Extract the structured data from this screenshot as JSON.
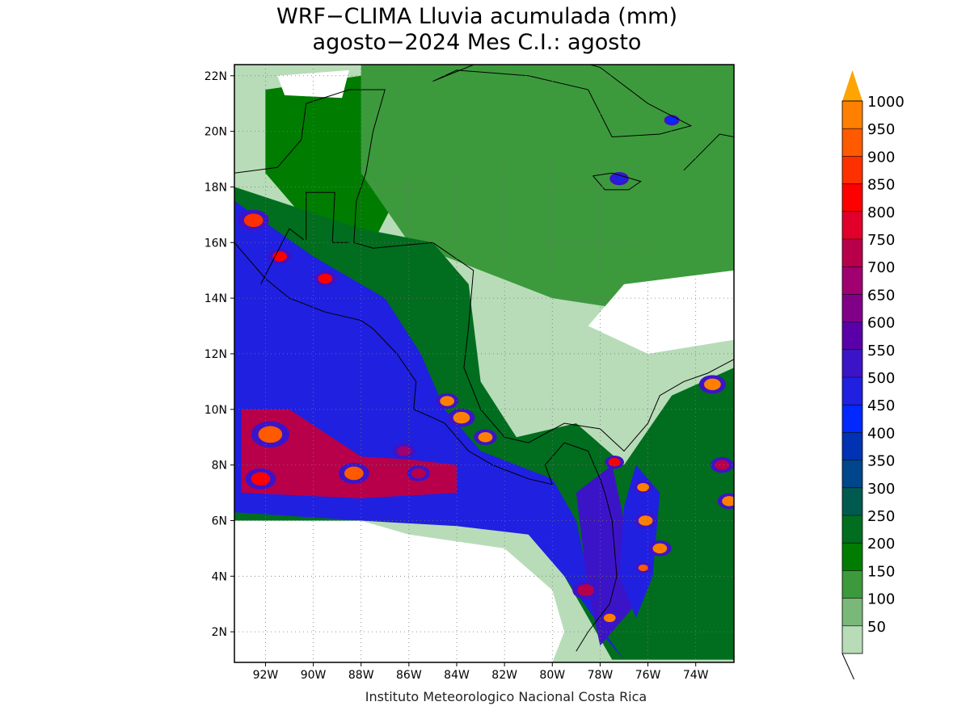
{
  "title_line1": "WRF−CLIMA Lluvia acumulada (mm)",
  "title_line2": "agosto−2024 Mes C.I.: agosto",
  "credit": "Instituto Meteorologico Nacional Costa Rica",
  "lat_labels": [
    "22N",
    "20N",
    "18N",
    "16N",
    "14N",
    "12N",
    "10N",
    "8N",
    "6N",
    "4N",
    "2N"
  ],
  "lat_values": [
    22,
    20,
    18,
    16,
    14,
    12,
    10,
    8,
    6,
    4,
    2
  ],
  "lon_labels": [
    "92W",
    "90W",
    "88W",
    "86W",
    "84W",
    "82W",
    "80W",
    "78W",
    "76W",
    "74W"
  ],
  "lon_values": [
    -92,
    -90,
    -88,
    -86,
    -84,
    -82,
    -80,
    -78,
    -76,
    -74
  ],
  "extent": {
    "lon_min": -93.3,
    "lon_max": -72.4,
    "lat_min": 0.9,
    "lat_max": 22.4
  },
  "colorbar": {
    "labels": [
      "1000",
      "950",
      "900",
      "850",
      "800",
      "750",
      "700",
      "650",
      "600",
      "550",
      "500",
      "450",
      "400",
      "350",
      "300",
      "250",
      "200",
      "150",
      "100",
      "50"
    ],
    "colors": [
      "#ffa400",
      "#ff8000",
      "#ff5a00",
      "#ff3000",
      "#ff0000",
      "#e0002a",
      "#b8004a",
      "#a00070",
      "#800088",
      "#5a00a8",
      "#3c14c8",
      "#2020e0",
      "#0028ff",
      "#0032b4",
      "#00468c",
      "#005a50",
      "#006e1e",
      "#007c00",
      "#3c9a3c",
      "#7ab87a",
      "#b8dcb8"
    ]
  },
  "rain_regions": [
    {
      "name": "yucatan",
      "level": "150",
      "pts": [
        [
          -92,
          21.5
        ],
        [
          -88,
          22
        ],
        [
          -86.5,
          21
        ],
        [
          -86,
          18.5
        ],
        [
          -87.5,
          16
        ],
        [
          -90,
          16.5
        ],
        [
          -92,
          18.5
        ]
      ]
    },
    {
      "name": "caribbean-north",
      "level": "100",
      "pts": [
        [
          -88,
          22.4
        ],
        [
          -72.4,
          22.4
        ],
        [
          -72.4,
          13
        ],
        [
          -80,
          14
        ],
        [
          -86,
          16
        ],
        [
          -88,
          18.5
        ]
      ]
    },
    {
      "name": "central-america",
      "level": "200",
      "pts": [
        [
          -93.3,
          18
        ],
        [
          -88,
          16.5
        ],
        [
          -85,
          16
        ],
        [
          -83.5,
          14.5
        ],
        [
          -83,
          11
        ],
        [
          -81.5,
          9
        ],
        [
          -79,
          9.5
        ],
        [
          -77,
          8
        ],
        [
          -75,
          10.5
        ],
        [
          -72.4,
          11.5
        ],
        [
          -72.4,
          1
        ],
        [
          -77.5,
          1
        ],
        [
          -79.5,
          4
        ],
        [
          -81,
          6
        ],
        [
          -86,
          6
        ],
        [
          -93.3,
          6
        ]
      ]
    },
    {
      "name": "pacific-itcz",
      "level": "450",
      "pts": [
        [
          -93.3,
          17.5
        ],
        [
          -90,
          15.5
        ],
        [
          -87,
          14
        ],
        [
          -85.5,
          12
        ],
        [
          -84.5,
          10
        ],
        [
          -83,
          8.5
        ],
        [
          -80,
          7.5
        ],
        [
          -79,
          6
        ],
        [
          -78,
          2
        ],
        [
          -77,
          1
        ],
        [
          -79.5,
          4
        ],
        [
          -81,
          5.5
        ],
        [
          -84,
          5.8
        ],
        [
          -88,
          6
        ],
        [
          -93.3,
          6.3
        ]
      ]
    },
    {
      "name": "itcz-core",
      "level": "700",
      "pts": [
        [
          -93,
          10
        ],
        [
          -91,
          10
        ],
        [
          -88,
          8.3
        ],
        [
          -86,
          8.2
        ],
        [
          -84,
          8
        ],
        [
          -84,
          7
        ],
        [
          -88,
          6.8
        ],
        [
          -93,
          7
        ]
      ]
    },
    {
      "name": "colombia-coast",
      "level": "500",
      "pts": [
        [
          -79,
          7
        ],
        [
          -77.5,
          8
        ],
        [
          -77,
          6
        ],
        [
          -76.5,
          3
        ],
        [
          -78,
          1.5
        ],
        [
          -78.5,
          3.5
        ]
      ]
    },
    {
      "name": "choco-west",
      "level": "450",
      "pts": [
        [
          -76.5,
          8
        ],
        [
          -75.5,
          7
        ],
        [
          -75.8,
          4
        ],
        [
          -76.5,
          2.5
        ],
        [
          -77.2,
          4
        ],
        [
          -77,
          6.5
        ]
      ]
    }
  ],
  "hotspots": [
    {
      "lon": -91.8,
      "lat": 9.1,
      "level": "900",
      "r": 0.5
    },
    {
      "lon": -88.3,
      "lat": 7.7,
      "level": "900",
      "r": 0.4
    },
    {
      "lon": -92.2,
      "lat": 7.5,
      "level": "800",
      "r": 0.4
    },
    {
      "lon": -92.5,
      "lat": 16.8,
      "level": "850",
      "r": 0.4
    },
    {
      "lon": -91.4,
      "lat": 15.5,
      "level": "800",
      "r": 0.3
    },
    {
      "lon": -89.5,
      "lat": 14.7,
      "level": "800",
      "r": 0.3
    },
    {
      "lon": -84.4,
      "lat": 10.3,
      "level": "950",
      "r": 0.3
    },
    {
      "lon": -83.8,
      "lat": 9.7,
      "level": "950",
      "r": 0.35
    },
    {
      "lon": -82.8,
      "lat": 9.0,
      "level": "950",
      "r": 0.3
    },
    {
      "lon": -77.4,
      "lat": 8.1,
      "level": "800",
      "r": 0.25
    },
    {
      "lon": -76.2,
      "lat": 7.2,
      "level": "950",
      "r": 0.25
    },
    {
      "lon": -76.1,
      "lat": 6.0,
      "level": "950",
      "r": 0.3
    },
    {
      "lon": -75.5,
      "lat": 5.0,
      "level": "950",
      "r": 0.3
    },
    {
      "lon": -76.2,
      "lat": 4.3,
      "level": "900",
      "r": 0.2
    },
    {
      "lon": -77.6,
      "lat": 2.5,
      "level": "950",
      "r": 0.25
    },
    {
      "lon": -73.3,
      "lat": 10.9,
      "level": "950",
      "r": 0.35
    },
    {
      "lon": -72.6,
      "lat": 6.7,
      "level": "950",
      "r": 0.3
    },
    {
      "lon": -72.9,
      "lat": 8.0,
      "level": "700",
      "r": 0.3
    },
    {
      "lon": -78.6,
      "lat": 3.5,
      "level": "700",
      "r": 0.35
    },
    {
      "lon": -85.6,
      "lat": 7.7,
      "level": "700",
      "r": 0.3
    },
    {
      "lon": -86.2,
      "lat": 8.5,
      "level": "650",
      "r": 0.3
    },
    {
      "lon": -77.2,
      "lat": 18.3,
      "level": "450",
      "r": 0.25
    },
    {
      "lon": -75.0,
      "lat": 20.4,
      "level": "400",
      "r": 0.2
    }
  ],
  "dry_regions": [
    {
      "name": "pacific-south",
      "pts": [
        [
          -93.3,
          6
        ],
        [
          -88,
          6
        ],
        [
          -86,
          5.5
        ],
        [
          -82,
          5
        ],
        [
          -80,
          3.5
        ],
        [
          -79.5,
          2
        ],
        [
          -80,
          0.9
        ],
        [
          -93.3,
          0.9
        ]
      ]
    },
    {
      "name": "gulf-north",
      "pts": [
        [
          -91.5,
          22
        ],
        [
          -88.5,
          22.2
        ],
        [
          -88.8,
          21.2
        ],
        [
          -91.2,
          21.3
        ]
      ]
    },
    {
      "name": "caribbean-dry",
      "pts": [
        [
          -77,
          14.5
        ],
        [
          -72.4,
          15
        ],
        [
          -72.4,
          12.5
        ],
        [
          -76,
          12
        ],
        [
          -78.5,
          13
        ]
      ]
    }
  ]
}
